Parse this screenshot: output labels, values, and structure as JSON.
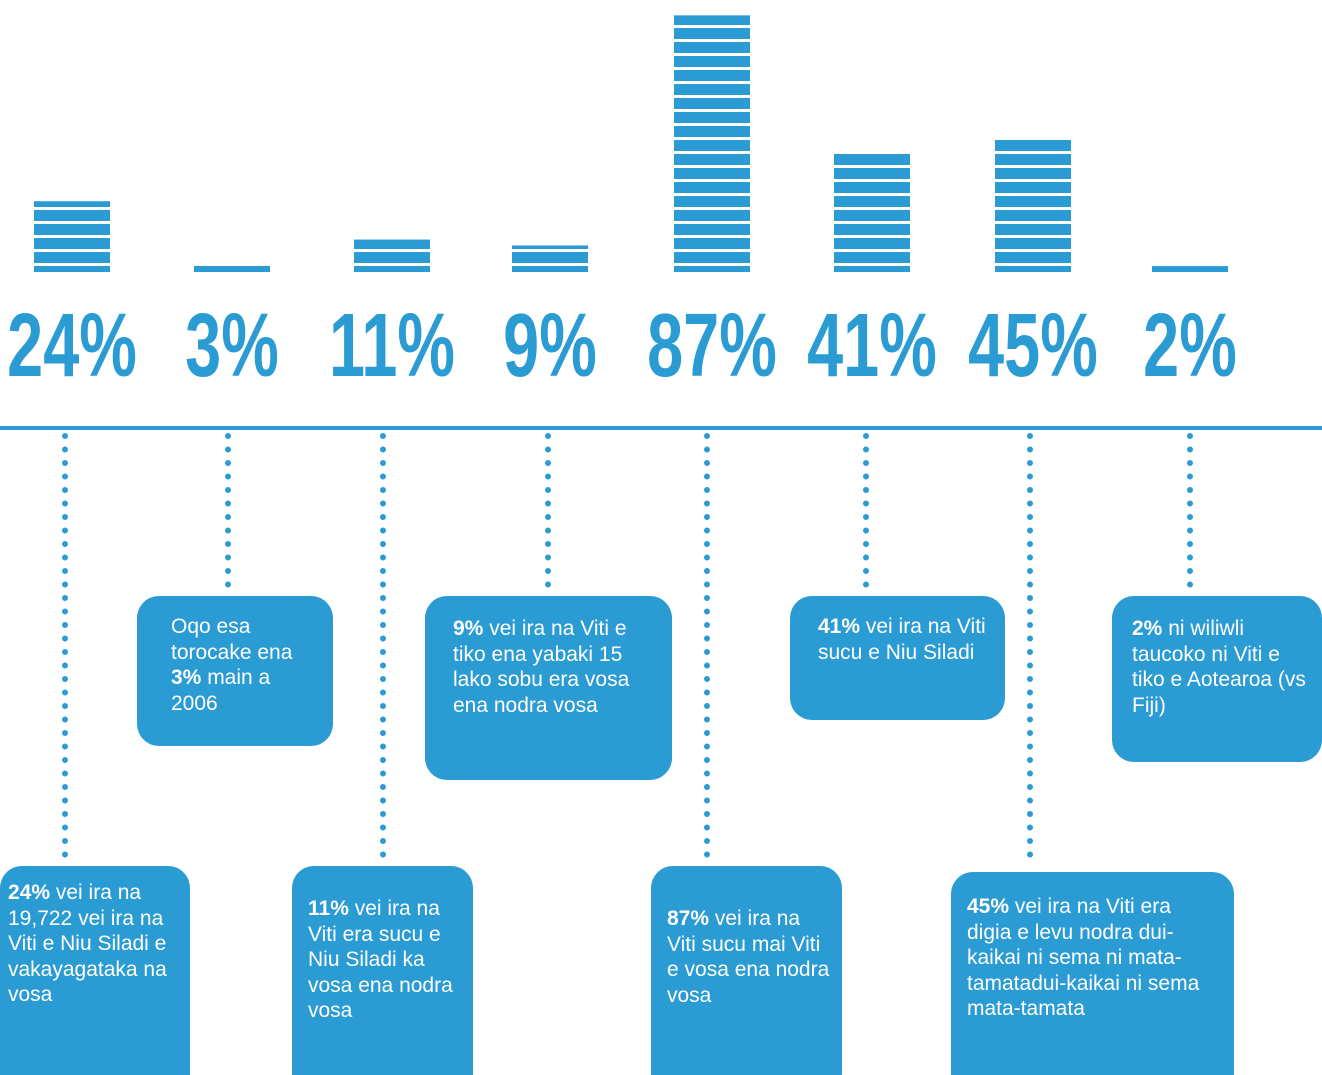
{
  "chart_data": {
    "type": "bar",
    "color": "#2b9bd4",
    "values": [
      24,
      3,
      11,
      9,
      87,
      41,
      45,
      2
    ],
    "value_labels": [
      "24%",
      "3%",
      "11%",
      "9%",
      "87%",
      "41%",
      "45%",
      "2%"
    ],
    "annotations": [
      [
        {
          "bold": "24%"
        },
        {
          "text": " vei ira na 19,722 vei ira na Viti e Niu Siladi e vakayagataka na vosa"
        }
      ],
      [
        {
          "text": "Oqo esa torocake ena "
        },
        {
          "bold": "3%"
        },
        {
          "text": " main a 2006"
        }
      ],
      [
        {
          "bold": "11%"
        },
        {
          "text": " vei ira na Viti era sucu e Niu Siladi ka vosa ena nodra vosa"
        }
      ],
      [
        {
          "bold": "9%"
        },
        {
          "text": " vei ira na Viti e tiko ena yabaki 15 lako sobu era vosa ena nodra vosa"
        }
      ],
      [
        {
          "bold": "87%"
        },
        {
          "text": " vei ira na Viti sucu mai Viti e vosa ena nodra vosa"
        }
      ],
      [
        {
          "bold": "41%"
        },
        {
          "text": " vei ira na Viti sucu e Niu Siladi"
        }
      ],
      [
        {
          "bold": "45%"
        },
        {
          "text": " vei ira na Viti era digia e levu nodra dui-kaikai ni sema ni mata-tamatadui-kaikai ni sema mata-tamata"
        }
      ],
      [
        {
          "bold": "2%"
        },
        {
          "text": " ni wiliwli taucoko ni Viti e tiko e Aotearoa (vs Fiji)"
        }
      ]
    ]
  }
}
